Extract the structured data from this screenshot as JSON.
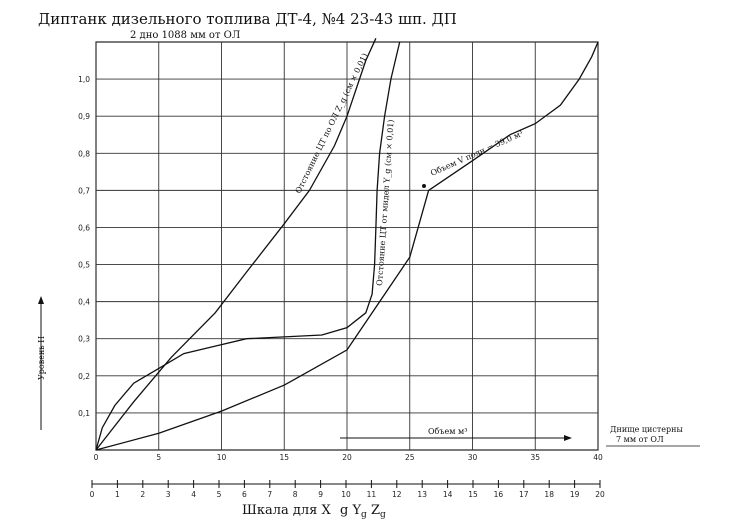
{
  "chart": {
    "title": "Диптанк дизельного топлива ДТ-4, №4   23-43 шп. ДП",
    "subtitle": "2 дно 1088 мм от ОЛ",
    "ylabel": "Уровень H",
    "xlabel": "Шкала для X",
    "note_line1": "Днище цистерны",
    "note_line2": "7 мм от ОЛ",
    "arrow_label": "Объем м³"
  },
  "chart_data": {
    "type": "line",
    "title": "Диптанк дизельного топлива ДТ-4, №4   23-43 шп. ДП",
    "subtitle": "2 дно 1088 мм от ОЛ",
    "ylabel": "Уровень H",
    "xlabel": "Шкала для X",
    "xlim": [
      0,
      40
    ],
    "ylim": [
      0,
      1.1
    ],
    "x_ticks": [
      0,
      5,
      10,
      15,
      20,
      25,
      30,
      35,
      40
    ],
    "y_ticks": [
      0.1,
      0.2,
      0.3,
      0.4,
      0.5,
      0.6,
      0.7,
      0.8,
      0.9,
      1.0
    ],
    "y_tick_labels": [
      "0,1",
      "0,2",
      "0,3",
      "0,4",
      "0,5",
      "0,6",
      "0,7",
      "0,8",
      "0,9",
      "1,0"
    ],
    "secondary_x_ticks": [
      0,
      1,
      2,
      3,
      4,
      5,
      6,
      7,
      8,
      9,
      10,
      11,
      12,
      13,
      14,
      15,
      16,
      17,
      18,
      19,
      20
    ],
    "grid": true,
    "series": [
      {
        "name": "Объем V полн = 39,0 м³",
        "x": [
          0,
          5,
          10,
          15,
          20,
          25,
          26.5,
          30,
          33,
          35,
          37,
          38.5,
          39.5,
          40
        ],
        "y": [
          0,
          0.045,
          0.105,
          0.175,
          0.27,
          0.52,
          0.7,
          0.78,
          0.85,
          0.88,
          0.93,
          1.0,
          1.06,
          1.1
        ]
      },
      {
        "name": "Отстояние ЦТ по ОЛ Z_g (см × 0,01)",
        "x": [
          0,
          3,
          6,
          9.5,
          12,
          15,
          17,
          19,
          20,
          20.8,
          21.5,
          22.3
        ],
        "y": [
          0,
          0.13,
          0.25,
          0.37,
          0.48,
          0.61,
          0.7,
          0.82,
          0.9,
          0.98,
          1.05,
          1.11
        ]
      },
      {
        "name": "Отстояние ЦТ от мидел Y_g (см × 0,01)",
        "x": [
          0,
          0.5,
          1.5,
          3,
          5,
          7,
          9.5,
          12,
          15,
          18,
          20,
          21.5,
          22,
          22.2,
          22.3,
          22.4,
          22.6,
          23,
          23.5,
          24.2
        ],
        "y": [
          0,
          0.06,
          0.12,
          0.18,
          0.22,
          0.26,
          0.28,
          0.3,
          0.305,
          0.31,
          0.33,
          0.37,
          0.42,
          0.5,
          0.6,
          0.7,
          0.8,
          0.9,
          1.0,
          1.1
        ]
      }
    ],
    "annotations": [
      {
        "text": "Объем V полн = 39,0 м³"
      },
      {
        "text": "Отстояние ЦТ по ОЛ Z_g (см × 0,01)"
      },
      {
        "text": "Отстояние ЦТ от мидел Y_g (см × 0,01)"
      },
      {
        "text": "Днище цистерны 7 мм от ОЛ"
      },
      {
        "text": "Объем м³"
      }
    ]
  }
}
